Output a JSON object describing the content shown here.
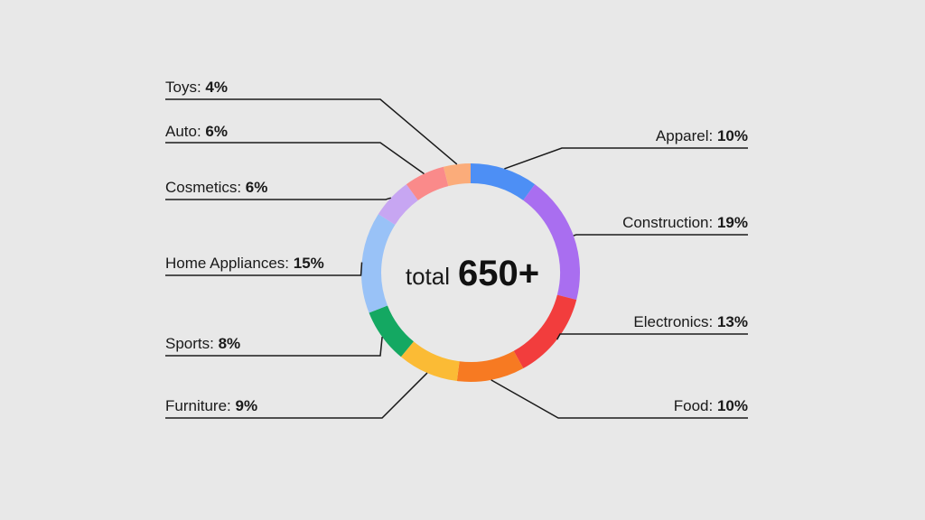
{
  "chart_data": {
    "type": "pie",
    "donut": true,
    "center": {
      "word": "total",
      "value": "650+"
    },
    "slices": [
      {
        "label": "Apparel",
        "value": 10,
        "display": "10%",
        "color": "#4d8ff5",
        "side": "right"
      },
      {
        "label": "Construction",
        "value": 19,
        "display": "19%",
        "color": "#a96ef0",
        "side": "right"
      },
      {
        "label": "Electronics",
        "value": 13,
        "display": "13%",
        "color": "#f23d3d",
        "side": "right"
      },
      {
        "label": "Food",
        "value": 10,
        "display": "10%",
        "color": "#f77a22",
        "side": "right"
      },
      {
        "label": "Furniture",
        "value": 9,
        "display": "9%",
        "color": "#fbbb35",
        "side": "left"
      },
      {
        "label": "Sports",
        "value": 8,
        "display": "8%",
        "color": "#14a862",
        "side": "left"
      },
      {
        "label": "Home Appliances",
        "value": 15,
        "display": "15%",
        "color": "#99c2f7",
        "side": "left"
      },
      {
        "label": "Cosmetics",
        "value": 6,
        "display": "6%",
        "color": "#c7a6f2",
        "side": "left"
      },
      {
        "label": "Auto",
        "value": 6,
        "display": "6%",
        "color": "#fa8a8a",
        "side": "left"
      },
      {
        "label": "Toys",
        "value": 4,
        "display": "4%",
        "color": "#fbac7a",
        "side": "left"
      }
    ]
  }
}
